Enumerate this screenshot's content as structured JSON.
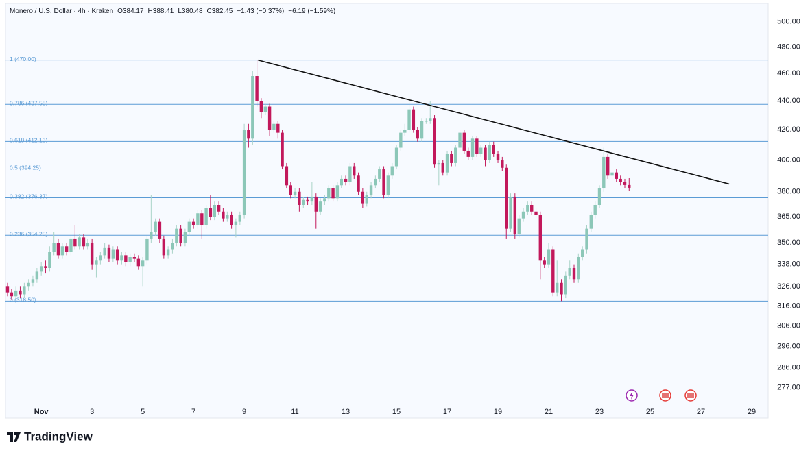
{
  "chart_data": {
    "type": "candlestick",
    "title": "Monero / U.S. Dollar · 4h · Kraken",
    "ohlc_labels": [
      "O384.17",
      "H388.41",
      "L380.48",
      "C382.45",
      "−1.43 (−0.37%)",
      "−6.19 (−1.59%)"
    ],
    "x": [
      -0.33,
      -0.17,
      0,
      0.17,
      0.33,
      0.5,
      0.67,
      0.83,
      1,
      1.17,
      1.33,
      1.5,
      1.67,
      1.83,
      2,
      2.17,
      2.33,
      2.5,
      2.67,
      2.83,
      3,
      3.17,
      3.33,
      3.5,
      3.67,
      3.83,
      4,
      4.17,
      4.33,
      4.5,
      4.67,
      4.83,
      5,
      5.17,
      5.33,
      5.5,
      5.67,
      5.83,
      6,
      6.17,
      6.33,
      6.5,
      6.67,
      6.83,
      7,
      7.17,
      7.33,
      7.5,
      7.67,
      7.83,
      8,
      8.17,
      8.33,
      8.5,
      8.67,
      8.83,
      9,
      9.17,
      9.33,
      9.5,
      9.67,
      9.83,
      10,
      10.17,
      10.33,
      10.5,
      10.67,
      10.83,
      11,
      11.17,
      11.33,
      11.5,
      11.67,
      11.83,
      12,
      12.17,
      12.33,
      12.5,
      12.67,
      12.83,
      13,
      13.17,
      13.33,
      13.5,
      13.67,
      13.83,
      14,
      14.17,
      14.33,
      14.5,
      14.67,
      14.83,
      15,
      15.17,
      15.33,
      15.5,
      15.67,
      15.83,
      16,
      16.17,
      16.33,
      16.5,
      16.67,
      16.83,
      17,
      17.17,
      17.33,
      17.5,
      17.67,
      17.83,
      18,
      18.17,
      18.33,
      18.5,
      18.67,
      18.83,
      19,
      19.17,
      19.33,
      19.5,
      19.67,
      19.83,
      20,
      20.17,
      20.33,
      20.5,
      20.67,
      20.83,
      21,
      21.17,
      21.33,
      21.5,
      21.67,
      21.83,
      22,
      22.17,
      22.33,
      22.5,
      22.67,
      22.83,
      23,
      23.17,
      23.33,
      23.5,
      23.67,
      23.83,
      24,
      24.17
    ],
    "open": [
      326,
      323,
      321,
      324,
      322,
      326,
      328,
      330,
      334,
      337,
      336,
      345,
      350,
      343,
      348,
      345,
      352,
      348,
      353,
      348,
      350,
      338,
      340,
      343,
      347,
      341,
      346,
      340,
      343,
      339,
      342,
      341,
      337,
      340,
      352,
      356,
      362,
      352,
      343,
      346,
      350,
      358,
      350,
      356,
      362,
      360,
      367,
      360,
      370,
      365,
      372,
      368,
      364,
      366,
      360,
      362,
      366,
      420,
      414,
      458,
      440,
      432,
      436,
      420,
      424,
      418,
      396,
      384,
      378,
      380,
      372,
      375,
      374,
      377,
      368,
      374,
      376,
      382,
      376,
      384,
      388,
      386,
      396,
      390,
      380,
      373,
      378,
      384,
      388,
      394,
      378,
      390,
      396,
      408,
      418,
      420,
      434,
      420,
      414,
      426,
      426,
      428,
      397,
      398,
      392,
      404,
      398,
      408,
      418,
      406,
      402,
      414,
      404,
      408,
      400,
      410,
      404,
      400,
      395,
      358,
      377,
      355,
      364,
      368,
      372,
      368,
      366,
      340,
      338,
      346,
      323,
      328,
      322,
      332,
      336,
      330,
      342,
      346,
      358,
      366,
      372,
      382,
      402,
      390,
      392,
      388,
      386,
      384.17
    ],
    "high": [
      328,
      325,
      326,
      326,
      328,
      330,
      332,
      336,
      339,
      340,
      348,
      356,
      352,
      350,
      350,
      354,
      360,
      355,
      355,
      352,
      352,
      342,
      345,
      350,
      349,
      348,
      348,
      345,
      345,
      344,
      344,
      343,
      342,
      354,
      378,
      364,
      364,
      354,
      348,
      352,
      360,
      360,
      358,
      364,
      364,
      369,
      369,
      372,
      378,
      374,
      374,
      370,
      368,
      368,
      364,
      368,
      424,
      424,
      462,
      470,
      442,
      438,
      438,
      426,
      426,
      420,
      398,
      386,
      382,
      382,
      377,
      377,
      386,
      379,
      376,
      378,
      384,
      384,
      386,
      390,
      390,
      398,
      398,
      392,
      382,
      380,
      386,
      390,
      396,
      396,
      392,
      398,
      410,
      420,
      424,
      440,
      436,
      422,
      428,
      428,
      440,
      430,
      400,
      400,
      406,
      406,
      410,
      420,
      420,
      408,
      416,
      416,
      410,
      410,
      412,
      412,
      406,
      402,
      397,
      379,
      379,
      366,
      370,
      374,
      374,
      370,
      368,
      342,
      350,
      348,
      340,
      330,
      334,
      340,
      338,
      344,
      348,
      360,
      368,
      374,
      384,
      408,
      404,
      394,
      394,
      390,
      388,
      388.41
    ],
    "low": [
      321,
      319,
      319,
      320,
      320,
      324,
      326,
      328,
      332,
      333,
      334,
      343,
      341,
      341,
      343,
      343,
      346,
      346,
      346,
      346,
      335,
      331,
      338,
      341,
      339,
      339,
      338,
      338,
      337,
      337,
      339,
      335,
      326,
      338,
      350,
      354,
      350,
      341,
      341,
      344,
      348,
      348,
      348,
      354,
      358,
      358,
      352,
      358,
      363,
      363,
      366,
      362,
      362,
      358,
      353,
      360,
      364,
      408,
      410,
      436,
      428,
      430,
      416,
      418,
      414,
      394,
      382,
      376,
      376,
      368,
      370,
      372,
      372,
      358,
      366,
      372,
      374,
      374,
      374,
      382,
      384,
      384,
      388,
      378,
      370,
      371,
      376,
      382,
      386,
      376,
      376,
      388,
      394,
      406,
      416,
      418,
      418,
      412,
      412,
      424,
      424,
      395,
      384,
      390,
      390,
      396,
      396,
      406,
      404,
      400,
      400,
      402,
      402,
      396,
      398,
      402,
      398,
      393,
      352,
      356,
      352,
      353,
      362,
      366,
      366,
      364,
      330,
      336,
      336,
      321,
      321,
      318.5,
      320,
      330,
      328,
      328,
      340,
      344,
      356,
      364,
      370,
      380,
      388,
      388,
      386,
      384,
      382,
      380.48
    ],
    "close": [
      323,
      321,
      324,
      322,
      326,
      328,
      330,
      334,
      337,
      336,
      345,
      350,
      343,
      348,
      345,
      352,
      348,
      353,
      348,
      350,
      338,
      340,
      343,
      347,
      341,
      346,
      340,
      343,
      339,
      342,
      341,
      337,
      340,
      352,
      356,
      362,
      352,
      343,
      346,
      350,
      358,
      350,
      356,
      362,
      360,
      367,
      360,
      370,
      365,
      372,
      368,
      364,
      366,
      360,
      362,
      366,
      420,
      414,
      458,
      440,
      432,
      436,
      420,
      424,
      418,
      396,
      384,
      378,
      380,
      372,
      375,
      374,
      377,
      368,
      374,
      376,
      382,
      376,
      384,
      388,
      386,
      396,
      390,
      380,
      373,
      378,
      384,
      388,
      394,
      378,
      390,
      396,
      408,
      418,
      420,
      434,
      420,
      414,
      426,
      426,
      428,
      397,
      398,
      392,
      404,
      398,
      408,
      418,
      406,
      402,
      414,
      404,
      408,
      400,
      410,
      404,
      400,
      395,
      358,
      377,
      355,
      364,
      368,
      372,
      368,
      366,
      340,
      338,
      346,
      323,
      328,
      322,
      332,
      336,
      330,
      342,
      346,
      358,
      366,
      372,
      382,
      402,
      390,
      392,
      388,
      386,
      384.17,
      382.45
    ],
    "up_color": "#8cc7b8",
    "down_color": "#c2185b",
    "xlim": [
      -0.41,
      29.65
    ],
    "xticks": [
      {
        "value": 1,
        "label": "Nov"
      },
      3,
      5,
      7,
      9,
      11,
      13,
      15,
      17,
      19,
      21,
      23,
      25,
      27,
      29
    ],
    "ylim": [
      269.6,
      515
    ],
    "log_scale": true,
    "yticks": [
      {
        "value": 500,
        "label": "500.00"
      },
      {
        "value": 480,
        "label": "480.00"
      },
      {
        "value": 460,
        "label": "460.00"
      },
      {
        "value": 440,
        "label": "440.00"
      },
      {
        "value": 420,
        "label": "420.00"
      },
      {
        "value": 400,
        "label": "400.00"
      },
      {
        "value": 380,
        "label": "380.00"
      },
      {
        "value": 365,
        "label": "365.00"
      },
      {
        "value": 350,
        "label": "350.00"
      },
      {
        "value": 338,
        "label": "338.00"
      },
      {
        "value": 326,
        "label": "326.00"
      },
      {
        "value": 316,
        "label": "316.00"
      },
      {
        "value": 306,
        "label": "306.00"
      },
      {
        "value": 296,
        "label": "296.00"
      },
      {
        "value": 286,
        "label": "286.00"
      },
      {
        "value": 277,
        "label": "277.00"
      }
    ],
    "fib_color": "#5b9bd5",
    "fib_levels": [
      {
        "value": 470,
        "label": "1 (470.00)"
      },
      {
        "value": 437.58,
        "label": "0.786 (437.58)"
      },
      {
        "value": 412.13,
        "label": "0.618 (412.13)"
      },
      {
        "value": 394.25,
        "label": "0.5 (394.25)"
      },
      {
        "value": 376.37,
        "label": "0.382 (376.37)"
      },
      {
        "value": 354.25,
        "label": "0.236 (354.25)"
      },
      {
        "value": 318.5,
        "label": "0 (318.50)"
      }
    ],
    "trendline": {
      "x": [
        9.54,
        28.11
      ],
      "y": [
        470,
        384.8
      ],
      "color": "#111111"
    }
  },
  "footer": {
    "brand": "TradingView"
  }
}
